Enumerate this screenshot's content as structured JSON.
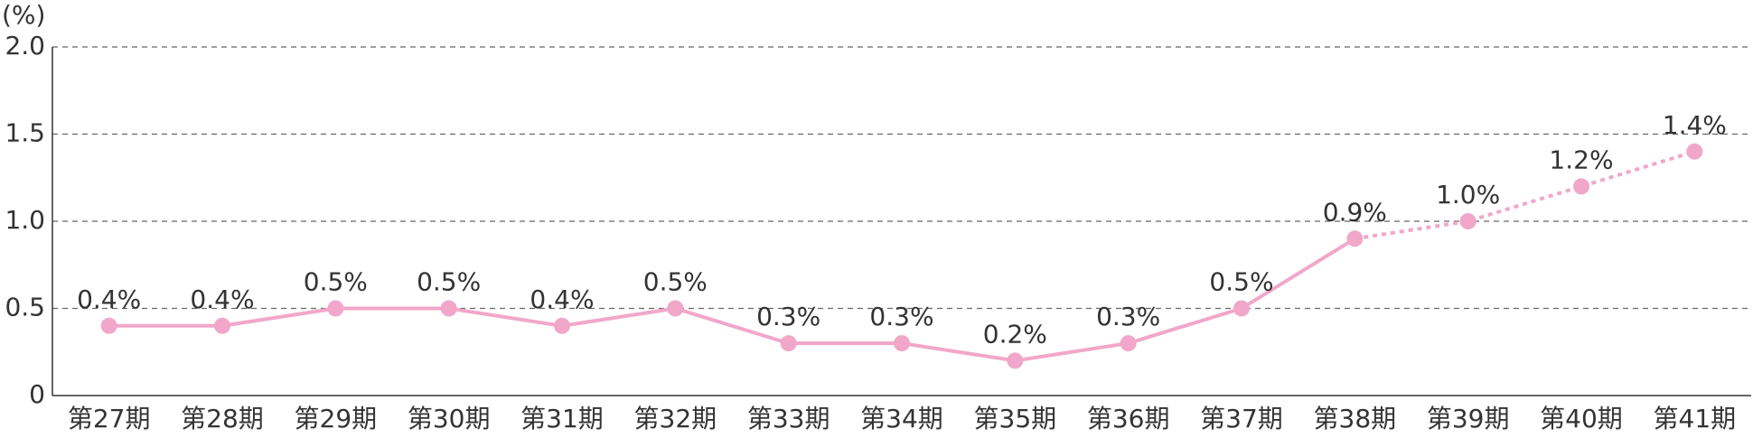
{
  "chart_data": {
    "type": "line",
    "y_unit_label": "(%)",
    "categories": [
      "第27期",
      "第28期",
      "第29期",
      "第30期",
      "第31期",
      "第32期",
      "第33期",
      "第34期",
      "第35期",
      "第36期",
      "第37期",
      "第38期",
      "第39期",
      "第40期",
      "第41期"
    ],
    "values": [
      0.4,
      0.4,
      0.5,
      0.5,
      0.4,
      0.5,
      0.3,
      0.3,
      0.2,
      0.3,
      0.5,
      0.9,
      1.0,
      1.2,
      1.4
    ],
    "value_labels": [
      "0.4%",
      "0.4%",
      "0.5%",
      "0.5%",
      "0.4%",
      "0.5%",
      "0.3%",
      "0.3%",
      "0.2%",
      "0.3%",
      "0.5%",
      "0.9%",
      "1.0%",
      "1.2%",
      "1.4%"
    ],
    "dashed_from_index": 11,
    "color": "#f1a7c9",
    "ylim": [
      0,
      2.0
    ],
    "yticks": [
      0,
      0.5,
      {
        "value": 1.0,
        "label": "1.0"
      },
      1.5,
      {
        "value": 2.0,
        "label": "2.0"
      }
    ],
    "grid": true
  }
}
